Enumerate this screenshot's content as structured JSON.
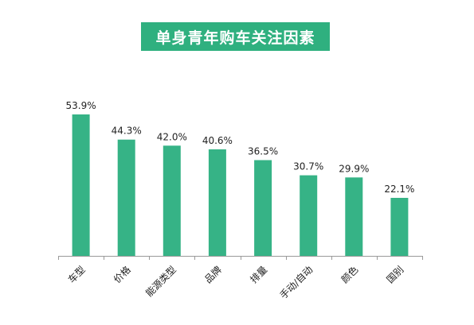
{
  "chart_data": {
    "type": "bar",
    "title": "单身青年购车关注因素",
    "categories": [
      "车型",
      "价格",
      "能源类型",
      "品牌",
      "排量",
      "手动/自动",
      "颜色",
      "国别"
    ],
    "values": [
      53.9,
      44.3,
      42.0,
      40.6,
      36.5,
      30.7,
      29.9,
      22.1
    ],
    "value_labels": [
      "53.9%",
      "44.3%",
      "42.0%",
      "40.6%",
      "36.5%",
      "30.7%",
      "29.9%",
      "22.1%"
    ],
    "xlabel": "",
    "ylabel": "",
    "ylim": [
      0,
      60
    ],
    "grid": false,
    "legend": "none",
    "colors": {
      "bar": "#36b386",
      "title_bg": "#2fb07f",
      "title_text": "#ffffff"
    }
  }
}
